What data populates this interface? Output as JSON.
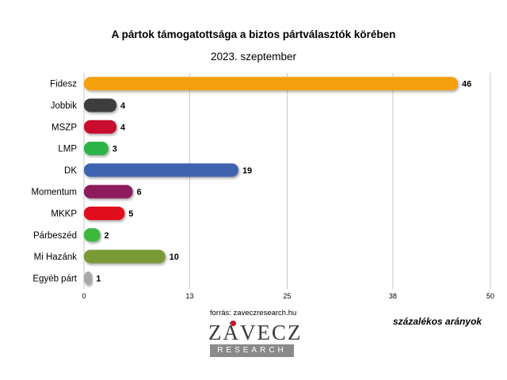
{
  "chart_data": {
    "type": "bar",
    "orientation": "horizontal",
    "title": "A pártok támogatottsága a biztos pártválasztók körében",
    "subtitle": "2023. szeptember",
    "categories": [
      "Fidesz",
      "Jobbik",
      "MSZP",
      "LMP",
      "DK",
      "Momentum",
      "MKKP",
      "Párbeszéd",
      "Mi Hazánk",
      "Egyéb párt"
    ],
    "values": [
      46,
      4,
      4,
      3,
      19,
      6,
      5,
      2,
      10,
      1
    ],
    "colors": [
      "#f7a00a",
      "#3d3d3d",
      "#c8102e",
      "#2db34a",
      "#3f63b0",
      "#8c1f5c",
      "#e2101c",
      "#3cb83c",
      "#7a9a35",
      "#a8a8a8"
    ],
    "xlim": [
      0,
      50
    ],
    "xticks": [
      0,
      13,
      25,
      38,
      50
    ],
    "grid": true,
    "xlabel": "",
    "ylabel": ""
  },
  "source": "forrás: zaveczresearch.hu",
  "unit_note": "százalékos arányok",
  "logo": {
    "name": "ZÁVECZ",
    "sub": "RESEARCH"
  }
}
